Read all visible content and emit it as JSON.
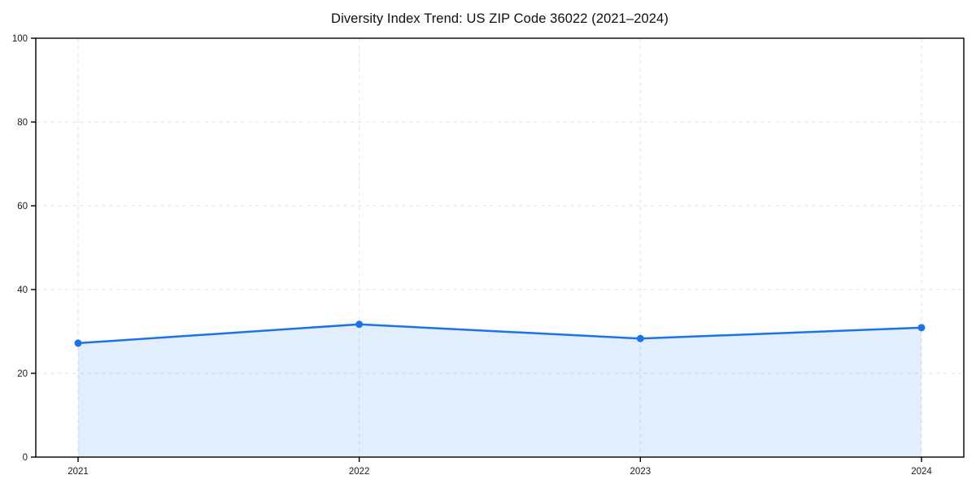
{
  "chart_data": {
    "type": "area",
    "title": "Diversity Index Trend: US ZIP Code 36022 (2021–2024)",
    "xlabel": "",
    "ylabel": "",
    "categories": [
      "2021",
      "2022",
      "2023",
      "2024"
    ],
    "series": [
      {
        "name": "Diversity Index",
        "values": [
          27.2,
          31.7,
          28.3,
          30.9
        ]
      }
    ],
    "ylim": [
      0,
      100
    ],
    "yticks": [
      0,
      20,
      40,
      60,
      80,
      100
    ],
    "grid": "dashed-both-axes",
    "legend_position": "none",
    "marker": "circle",
    "colors": {
      "line": "#1a73e8",
      "marker": "#1a73e8",
      "area_fill": "rgba(26,115,232,0.12)",
      "gridline": "#e3e3e3",
      "spine": "#000000",
      "tick_text": "#1a1a1a",
      "background": "#ffffff"
    }
  }
}
